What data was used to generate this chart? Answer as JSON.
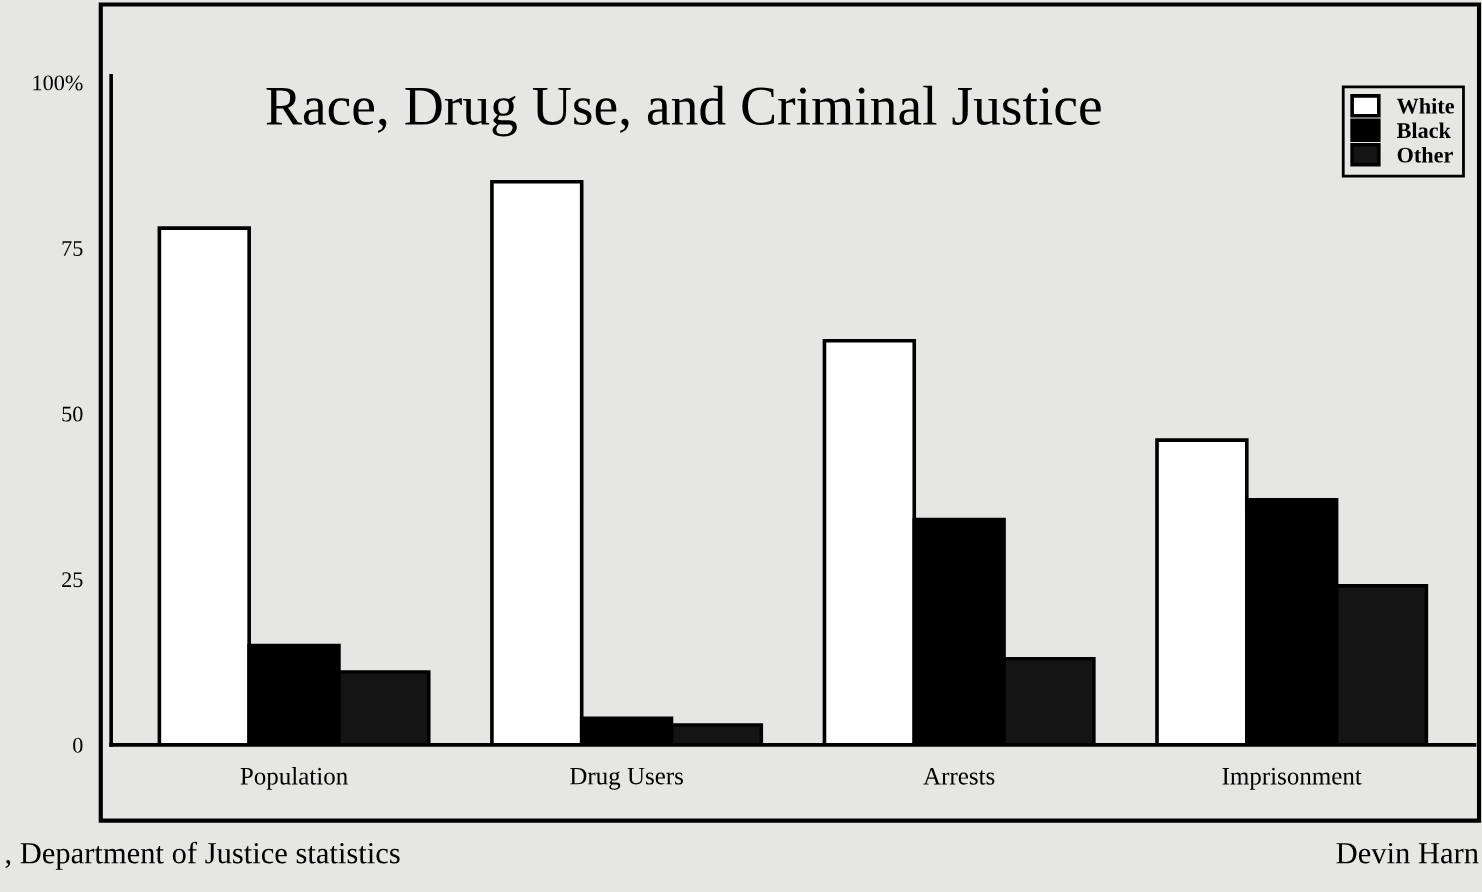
{
  "chart_data": {
    "type": "bar",
    "title": "Race, Drug Use, and Criminal Justice",
    "categories": [
      "Population",
      "Drug Users",
      "Arrests",
      "Imprisonment"
    ],
    "series": [
      {
        "name": "White",
        "color": "#ffffff",
        "values": [
          78,
          85,
          61,
          46
        ]
      },
      {
        "name": "Black",
        "color": "#000000",
        "values": [
          15,
          4,
          34,
          37
        ]
      },
      {
        "name": "Other",
        "color": "#141414",
        "values": [
          11,
          3,
          13,
          24
        ]
      }
    ],
    "ylim": [
      0,
      101
    ],
    "yticks": [
      0,
      25,
      50,
      75,
      {
        "value": 100,
        "label": "100%"
      }
    ],
    "grid": false,
    "legend": "top right",
    "annotations": [
      ", Department of Justice statistics",
      "Devin Harn"
    ]
  }
}
